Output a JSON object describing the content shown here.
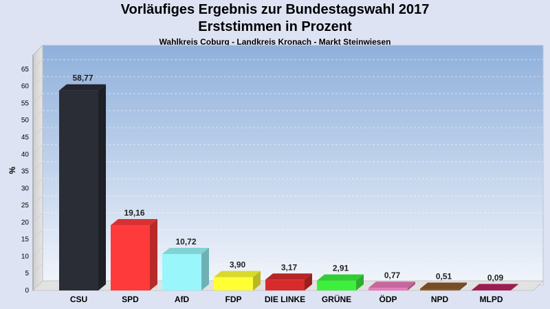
{
  "chart_data": {
    "type": "bar",
    "title": "Vorläufiges Ergebnis zur Bundestagswahl 2017",
    "subtitle": "Erststimmen in Prozent",
    "subsubtitle": "Wahlkreis Coburg - Landkreis Kronach - Markt Steinwiesen",
    "xlabel": "",
    "ylabel": "%",
    "ylim": [
      0,
      68
    ],
    "yticks": [
      "0",
      "5",
      "10",
      "15",
      "20",
      "25",
      "30",
      "35",
      "40",
      "45",
      "50",
      "55",
      "60",
      "65"
    ],
    "grid": true,
    "categories": [
      "CSU",
      "SPD",
      "AfD",
      "FDP",
      "DIE LINKE",
      "GRÜNE",
      "ÖDP",
      "NPD",
      "MLPD"
    ],
    "values": [
      58.77,
      19.16,
      10.72,
      3.9,
      3.17,
      2.91,
      0.77,
      0.51,
      0.09
    ],
    "value_labels": [
      "58,77",
      "19,16",
      "10,72",
      "3,90",
      "3,17",
      "2,91",
      "0,77",
      "0,51",
      "0,09"
    ],
    "colors": [
      "#2a2d35",
      "#ff3a3a",
      "#99f6fb",
      "#ffff33",
      "#d72b2b",
      "#3df03d",
      "#e97ab9",
      "#8b5a2b",
      "#b5235f"
    ]
  }
}
